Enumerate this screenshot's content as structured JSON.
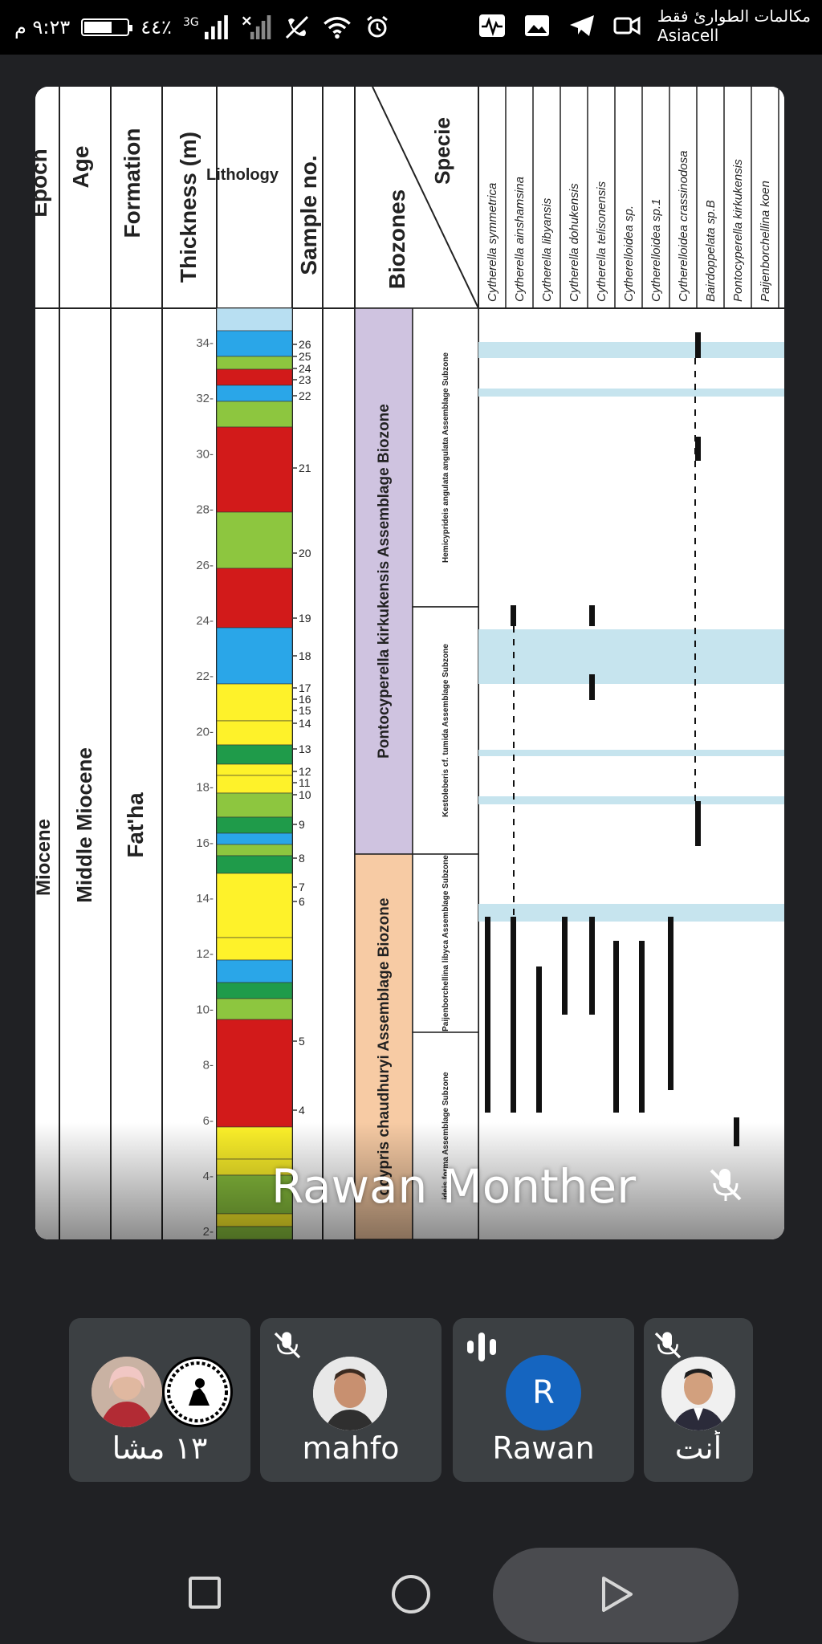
{
  "status_bar": {
    "time": "٩:٢٣ م",
    "battery_percent": "٤٤٪",
    "network": "3G",
    "carrier_line1": "مكالمات الطوارئ فقط",
    "carrier_line2": "Asiacell"
  },
  "video_tile": {
    "speaker_name": "Rawan Monther",
    "mic_status": "muted",
    "shared_figure": {
      "header_columns": [
        "Epoch",
        "Age",
        "Formation",
        "Thickness (m)",
        "Lithology",
        "Sample no.",
        "Biozones"
      ],
      "species_header": "Specie",
      "species": [
        "Cytherella symmetrica",
        "Cytherella ainshamsina",
        "Cytherella libyansis",
        "Cytherella dohukensis",
        "Cytherella telisonensis",
        "Cytherelloidea sp.",
        "Cytherelloidea sp.1",
        "Cytherelloidea crassinodosa",
        "Bairdoppelata sp.B",
        "Pontocyperella kirkukensis",
        "Paijenborchellina koen"
      ],
      "epoch": "Miocene",
      "age": "Middle Miocene",
      "formation": "Fat'ha",
      "thickness_ticks": [
        "34-",
        "32-",
        "30-",
        "28-",
        "26-",
        "24-",
        "22-",
        "20-",
        "18-",
        "16-",
        "14-",
        "12-",
        "10-",
        "8-",
        "6-",
        "4-",
        "2-"
      ],
      "samples": [
        "26",
        "25",
        "24",
        "23",
        "22",
        "21",
        "20",
        "19",
        "18",
        "17",
        "16",
        "15",
        "14",
        "13",
        "12",
        "11",
        "10",
        "9",
        "8",
        "7",
        "6",
        "5",
        "4"
      ],
      "biozones": {
        "upper": "Pontocyperella kirkukensis Assemblage Biozone",
        "lower": "ocypris chaudhuryi Assemblage Biozone"
      },
      "subzones": [
        "Hemicyprideis angulata angulata Assemblage Subzone",
        "Kestoleberis cf. tumida Assemblage Subzone",
        "Paijenborchellina libyca Assemblage Subzone",
        "ideis forma Assemblage Subzone"
      ]
    },
    "colors": {
      "purple_zone": "#cfc3e0",
      "orange_zone": "#f7cba4",
      "highlight_band": "#c6e4ee",
      "red": "#d21a1a",
      "yellow": "#fef22a",
      "green": "#8dc63f",
      "darkgreen": "#1f9b4a",
      "blue": "#2aa6e8"
    }
  },
  "participants": [
    {
      "name": "١٣ مشا",
      "type": "group"
    },
    {
      "name": "mahfo",
      "mic": "muted"
    },
    {
      "name": "Rawan",
      "avatar_letter": "R",
      "mic": "speaking"
    },
    {
      "name": "أنت",
      "mic": "muted"
    }
  ],
  "nav": {
    "recent_icon": "square-icon",
    "home_icon": "circle-icon",
    "back_icon": "triangle-icon"
  }
}
